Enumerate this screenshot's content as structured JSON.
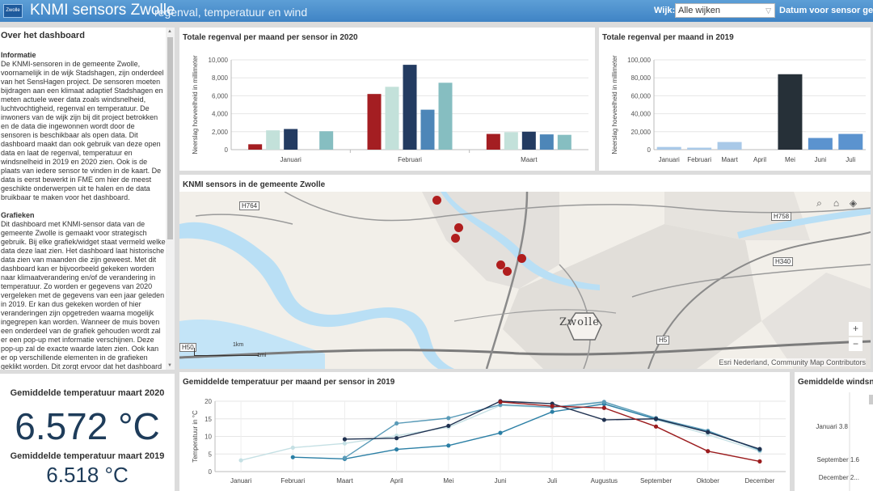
{
  "header": {
    "logo_text": "Zwolle",
    "title": "KNMI sensors Zwolle",
    "subtitle": "regenval, temperatuur en wind",
    "wijk_label": "Wijk:",
    "wijk_value": "Alle wijken",
    "date_label": "Datum voor sensor gegevens"
  },
  "about": {
    "title": "Over het dashboard",
    "info_heading": "Informatie",
    "info_text": "De KNMI-sensoren in de gemeente Zwolle, voornamelijk in de wijk Stadshagen, zijn onderdeel van het SensHagen project. De sensoren moeten bijdragen aan een klimaat adaptief Stadshagen en meten actuele weer data zoals windsnelheid, luchtvochtigheid, regenval en temperatuur. De inwoners van de wijk zijn bij dit project betrokken en de data die ingewonnen wordt door de sensoren is beschikbaar als open data. Dit dashboard maakt dan ook gebruik van deze open data en laat de regenval, temperatuur en windsnelheid in 2019 en 2020 zien. Ook is de plaats van iedere sensor te vinden in de kaart. De data is eerst bewerkt in FME om hier de meest geschikte onderwerpen uit te halen en de data bruikbaar te maken voor het dashboard.",
    "graph_heading": "Grafieken",
    "graph_text": "Dit dashboard met KNMI-sensor data van de gemeente Zwolle is gemaakt voor strategisch gebruik. Bij elke grafiek/widget staat vermeld welke data deze laat zien. Het dashboard laat historische data zien van maanden die zijn geweest. Met dit dashboard kan er bijvoorbeeld gekeken worden naar klimaatverandering en/of de verandering in temperatuur. Zo worden er gegevens van 2020 vergeleken met de gegevens van een jaar geleden in 2019. Er kan dus gekeken worden of hier veranderingen zijn opgetreden waarna mogelijk ingegrepen kan worden. Wanneer de muis boven een onderdeel van de grafiek gehouden wordt zal er een pop-up met informatie verschijnen. Deze pop-up zal de exacte waarde laten zien. Ook kan er op verschillende elementen in de grafieken geklikt worden. Dit zorgt ervoor dat het dashboard zich zal"
  },
  "gauge": {
    "label_2020": "Gemiddelde temperatuur maart 2020",
    "value_2020": "6.572 °C",
    "label_2019": "Gemiddelde temperatuur maart 2019",
    "value_2019": "6.518 °C"
  },
  "map": {
    "title": "KNMI sensors in de gemeente Zwolle",
    "attribution": "Esri Nederland, Community Map Contributors",
    "city_label": "Zwolle",
    "road_labels": [
      "H764",
      "H758",
      "H340",
      "H5",
      "H50"
    ],
    "scale_km": "1km",
    "scale_mi": "1mi",
    "zoom_in": "+",
    "zoom_out": "−",
    "search_icon": "search-icon",
    "home_icon": "home-icon",
    "layers_icon": "layers-icon",
    "sensor_color": "#b01e1e"
  },
  "wind": {
    "title": "Gemiddelde windsnelheid",
    "labels": [
      "Januari 3.8",
      "September 1.6",
      "December 2..."
    ]
  },
  "chart_data": [
    {
      "type": "bar",
      "title": "Totale regenval per maand per sensor in 2020",
      "ylabel": "Neerslag hoeveelheid in millimeter",
      "categories": [
        "Januari",
        "Februari",
        "Maart"
      ],
      "ylim": [
        0,
        10000
      ],
      "yticks": [
        "0",
        "2,000",
        "4,000",
        "6,000",
        "8,000",
        "10,000"
      ],
      "grid": true,
      "series": [
        {
          "color": "#a41e22",
          "values": [
            600,
            6200,
            1750
          ]
        },
        {
          "color": "#c3e1da",
          "values": [
            2150,
            7000,
            1950
          ]
        },
        {
          "color": "#233b61",
          "values": [
            2300,
            9450,
            2000
          ]
        },
        {
          "color": "#4d86b8",
          "values": [
            0,
            4450,
            1700
          ]
        },
        {
          "color": "#86bec1",
          "values": [
            2050,
            7450,
            1650
          ]
        }
      ]
    },
    {
      "type": "bar",
      "title": "Totale regenval per maand in 2019",
      "ylabel": "Neerslag hoeveelheid in millimeter",
      "categories": [
        "Januari",
        "Februari",
        "Maart",
        "April",
        "Mei",
        "Juni",
        "Juli"
      ],
      "ylim": [
        0,
        100000
      ],
      "yticks": [
        "0",
        "20,000",
        "40,000",
        "60,000",
        "80,000",
        "100,000"
      ],
      "grid": true,
      "values": [
        3000,
        2200,
        8500,
        0,
        84000,
        13000,
        17500
      ],
      "colors": [
        "#a9c9e8",
        "#a9c9e8",
        "#a9c9e8",
        "#a9c9e8",
        "#263038",
        "#5b93cf",
        "#5b93cf"
      ]
    },
    {
      "type": "line",
      "title": "Gemiddelde temperatuur per maand per sensor in 2019",
      "ylabel": "Temperatuur in °C",
      "categories": [
        "Januari",
        "Februari",
        "Maart",
        "April",
        "Mei",
        "Juni",
        "Juli",
        "Augustus",
        "September",
        "Oktober",
        "December"
      ],
      "ylim": [
        0,
        20
      ],
      "yticks": [
        "0",
        "5",
        "10",
        "15",
        "20"
      ],
      "grid": true,
      "series": [
        {
          "color": "#c5e0e4",
          "values": [
            3.2,
            6.8,
            8.0,
            10.2,
            12.6,
            18.8,
            18.2,
            19.5,
            14.8,
            10.5,
            5.8
          ]
        },
        {
          "color": "#2b7fa5",
          "values": [
            null,
            4.1,
            3.6,
            6.3,
            7.4,
            11.0,
            17.0,
            19.2,
            14.9,
            11.3,
            6.3
          ]
        },
        {
          "color": "#5a9bb8",
          "values": [
            null,
            null,
            3.9,
            13.7,
            15.2,
            19.0,
            18.3,
            19.8,
            15.2,
            11.6,
            6.1
          ]
        },
        {
          "color": "#1f3150",
          "values": [
            null,
            null,
            9.2,
            9.5,
            13.0,
            20.0,
            19.3,
            14.7,
            15.0,
            11.2,
            6.4
          ]
        },
        {
          "color": "#9b1c1e",
          "values": [
            null,
            null,
            null,
            null,
            null,
            19.8,
            18.6,
            18.1,
            12.8,
            5.8,
            2.9
          ]
        }
      ]
    }
  ]
}
